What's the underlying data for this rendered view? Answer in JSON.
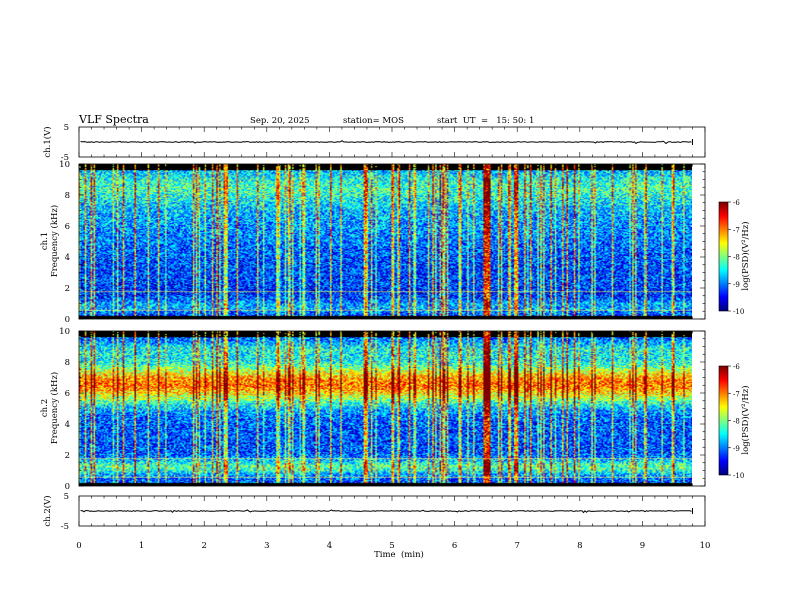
{
  "header": {
    "title": "VLF Spectra",
    "date": "Sep. 20, 2025",
    "station": "station= MOS",
    "start_label": "start  UT  =   15: 50: 1"
  },
  "chart_data": [
    {
      "id": "ch1_waveform",
      "type": "line",
      "ylabel": "ch.1(V)",
      "ylim": [
        -5,
        5
      ],
      "yticks": [
        "5",
        "-5"
      ],
      "xlim": [
        0,
        10
      ],
      "baseline": 0
    },
    {
      "id": "ch1_spectrogram",
      "type": "heatmap",
      "ylabel": "ch.1\nFrequency (kHz)",
      "ylabel_ch": "ch.1",
      "ylabel_freq": "Frequency (kHz)",
      "ylim": [
        0,
        10
      ],
      "yticks": [
        "0",
        "2",
        "4",
        "6",
        "8",
        "10"
      ],
      "xlim": [
        0,
        10
      ],
      "data_end_min": 9.8,
      "colorbar": {
        "label": "log(PSD)(V²/Hz)",
        "ticks": [
          "-6",
          "-7",
          "-8",
          "-9",
          "-10"
        ],
        "range": [
          -10,
          -6
        ]
      }
    },
    {
      "id": "ch2_spectrogram",
      "type": "heatmap",
      "ylabel_ch": "ch.2",
      "ylabel_freq": "Frequency (kHz)",
      "ylim": [
        0,
        10
      ],
      "yticks": [
        "0",
        "2",
        "4",
        "6",
        "8",
        "10"
      ],
      "xlim": [
        0,
        10
      ],
      "data_end_min": 9.8,
      "peak_band_khz": [
        5,
        8
      ],
      "colorbar": {
        "label": "log(PSD)(V²/Hz)",
        "ticks": [
          "-6",
          "-7",
          "-8",
          "-9",
          "-10"
        ],
        "range": [
          -10,
          -6
        ]
      }
    },
    {
      "id": "ch2_waveform",
      "type": "line",
      "ylabel": "ch.2(V)",
      "ylim": [
        -5,
        5
      ],
      "yticks": [
        "5",
        "-5"
      ],
      "xlim": [
        0,
        10
      ],
      "baseline": 0
    }
  ],
  "xaxis": {
    "label": "Time  (min)",
    "ticks": [
      "0",
      "1",
      "2",
      "3",
      "4",
      "5",
      "6",
      "7",
      "8",
      "9",
      "10"
    ]
  },
  "colors": {
    "low": "#000080",
    "high": "#ff0000",
    "background": "#000000"
  }
}
